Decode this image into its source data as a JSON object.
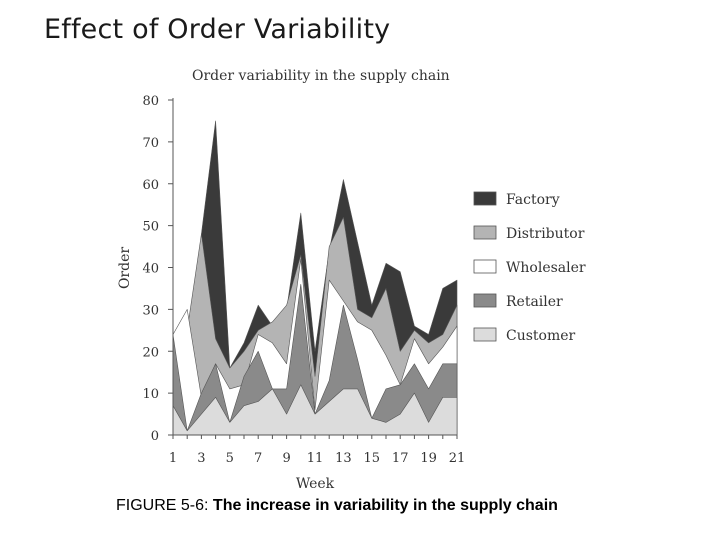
{
  "slide": {
    "title": "Effect of Order Variability",
    "caption_prefix": "FIGURE 5-6:",
    "caption_text": " The increase in variability in the supply chain"
  },
  "chart_data": {
    "type": "area",
    "title": "Order variability in the supply chain",
    "xlabel": "Week",
    "ylabel": "Order",
    "x": [
      1,
      2,
      3,
      4,
      5,
      6,
      7,
      8,
      9,
      10,
      11,
      12,
      13,
      14,
      15,
      16,
      17,
      18,
      19,
      20,
      21
    ],
    "xticks": [
      1,
      3,
      5,
      7,
      9,
      11,
      13,
      15,
      17,
      19,
      21
    ],
    "yticks": [
      0,
      10,
      20,
      30,
      40,
      50,
      60,
      70,
      80
    ],
    "ylim": [
      0,
      80
    ],
    "xlim": [
      1,
      21
    ],
    "grid": false,
    "legend_position": "right",
    "series": [
      {
        "name": "Factory",
        "color": "#3a3a3a",
        "values": [
          24,
          2,
          48,
          75,
          16,
          22,
          31,
          26,
          30,
          53,
          20,
          44,
          61,
          46,
          31,
          41,
          39,
          26,
          24,
          35,
          37
        ]
      },
      {
        "name": "Distributor",
        "color": "#b4b4b4",
        "values": [
          24,
          25,
          48,
          23,
          16,
          20,
          25,
          27,
          31,
          43,
          14,
          45,
          52,
          30,
          28,
          35,
          20,
          25,
          22,
          24,
          31
        ]
      },
      {
        "name": "Wholesaler",
        "color": "#ffffff",
        "values": [
          24,
          30,
          9,
          17,
          11,
          12,
          24,
          22,
          17,
          42,
          6,
          37,
          32,
          27,
          25,
          19,
          12,
          23,
          17,
          21,
          26
        ]
      },
      {
        "name": "Retailer",
        "color": "#8a8a8a",
        "values": [
          24,
          1,
          10,
          17,
          3,
          14,
          20,
          11,
          11,
          36,
          5,
          13,
          31,
          18,
          4,
          11,
          12,
          17,
          11,
          17,
          17
        ]
      },
      {
        "name": "Customer",
        "color": "#dcdcdc",
        "values": [
          7,
          1,
          5,
          9,
          3,
          7,
          8,
          11,
          5,
          12,
          5,
          8,
          11,
          11,
          4,
          3,
          5,
          10,
          3,
          9,
          9
        ]
      }
    ]
  }
}
